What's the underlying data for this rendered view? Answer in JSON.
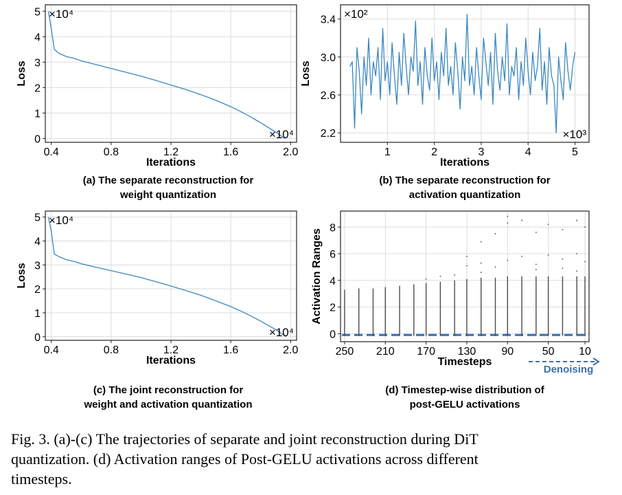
{
  "chart_data": [
    {
      "id": "a",
      "type": "line",
      "title": "",
      "xlabel": "Iterations",
      "ylabel": "Loss",
      "x_multiplier": "×10⁴",
      "y_multiplier": "×10⁴",
      "xlim": [
        0.36,
        2.04
      ],
      "ylim": [
        -0.15,
        5.25
      ],
      "xticks": [
        "0.4",
        "0.8",
        "1.2",
        "1.6",
        "2.0"
      ],
      "yticks": [
        "0",
        "1",
        "2",
        "3",
        "4",
        "5"
      ],
      "grid": true,
      "color": "#3a87c0",
      "x": [
        0.38,
        0.4,
        0.42,
        0.45,
        0.5,
        0.55,
        0.6,
        0.7,
        0.8,
        0.9,
        1.0,
        1.1,
        1.2,
        1.3,
        1.4,
        1.5,
        1.6,
        1.7,
        1.8,
        1.9,
        1.96
      ],
      "y": [
        5.0,
        4.3,
        3.5,
        3.35,
        3.22,
        3.15,
        3.05,
        2.9,
        2.75,
        2.6,
        2.45,
        2.28,
        2.1,
        1.92,
        1.72,
        1.5,
        1.25,
        0.96,
        0.62,
        0.25,
        0.0
      ]
    },
    {
      "id": "b",
      "type": "line",
      "title": "",
      "xlabel": "Iterations",
      "ylabel": "Loss",
      "x_multiplier": "×10³",
      "y_multiplier": "×10²",
      "xlim": [
        0.0,
        5.3
      ],
      "ylim": [
        2.1,
        3.55
      ],
      "xticks": [
        "1",
        "2",
        "3",
        "4",
        "5"
      ],
      "yticks": [
        "2.2",
        "2.6",
        "3.0",
        "3.4"
      ],
      "grid": true,
      "color": "#3a87c0",
      "x": [
        0.2,
        0.25,
        0.3,
        0.35,
        0.4,
        0.45,
        0.5,
        0.55,
        0.6,
        0.65,
        0.7,
        0.75,
        0.8,
        0.85,
        0.9,
        0.95,
        1.0,
        1.05,
        1.1,
        1.15,
        1.2,
        1.25,
        1.3,
        1.35,
        1.4,
        1.45,
        1.5,
        1.55,
        1.6,
        1.65,
        1.7,
        1.75,
        1.8,
        1.85,
        1.9,
        1.95,
        2.0,
        2.05,
        2.1,
        2.15,
        2.2,
        2.25,
        2.3,
        2.35,
        2.4,
        2.45,
        2.5,
        2.55,
        2.6,
        2.65,
        2.7,
        2.75,
        2.8,
        2.85,
        2.9,
        2.95,
        3.0,
        3.05,
        3.1,
        3.15,
        3.2,
        3.25,
        3.3,
        3.35,
        3.4,
        3.45,
        3.5,
        3.55,
        3.6,
        3.65,
        3.7,
        3.75,
        3.8,
        3.85,
        3.9,
        3.95,
        4.0,
        4.05,
        4.1,
        4.15,
        4.2,
        4.25,
        4.3,
        4.35,
        4.4,
        4.45,
        4.5,
        4.55,
        4.6,
        4.65,
        4.7,
        4.75,
        4.8,
        4.85,
        4.9,
        4.95,
        5.0
      ],
      "y": [
        2.9,
        2.95,
        2.25,
        3.1,
        2.85,
        2.4,
        3.0,
        2.7,
        3.2,
        2.6,
        2.95,
        2.8,
        3.1,
        2.55,
        3.3,
        2.75,
        2.95,
        2.6,
        3.15,
        2.8,
        2.5,
        3.05,
        2.7,
        3.25,
        2.9,
        2.6,
        3.0,
        2.85,
        3.38,
        2.7,
        2.95,
        2.5,
        3.1,
        2.8,
        2.65,
        3.2,
        2.75,
        2.95,
        2.55,
        3.05,
        2.8,
        3.3,
        2.7,
        2.9,
        2.6,
        3.15,
        2.85,
        2.45,
        3.0,
        2.75,
        3.45,
        2.7,
        2.9,
        2.6,
        3.1,
        2.8,
        2.55,
        3.2,
        2.95,
        2.7,
        3.05,
        2.5,
        3.25,
        2.85,
        2.65,
        3.0,
        2.75,
        3.35,
        2.6,
        2.9,
        2.8,
        3.1,
        2.55,
        2.95,
        2.7,
        3.2,
        2.85,
        2.6,
        3.05,
        2.75,
        2.9,
        3.3,
        2.65,
        2.95,
        2.5,
        3.1,
        2.8,
        2.7,
        2.2,
        3.0,
        2.75,
        2.55,
        3.15,
        2.85,
        2.65,
        2.9,
        3.05
      ]
    },
    {
      "id": "c",
      "type": "line",
      "title": "",
      "xlabel": "Iterations",
      "ylabel": "Loss",
      "x_multiplier": "×10⁴",
      "y_multiplier": "×10⁴",
      "xlim": [
        0.36,
        2.04
      ],
      "ylim": [
        -0.15,
        5.25
      ],
      "xticks": [
        "0.4",
        "0.8",
        "1.2",
        "1.6",
        "2.0"
      ],
      "yticks": [
        "0",
        "1",
        "2",
        "3",
        "4",
        "5"
      ],
      "grid": true,
      "color": "#3a87c0",
      "x": [
        0.38,
        0.4,
        0.42,
        0.45,
        0.5,
        0.55,
        0.6,
        0.7,
        0.8,
        0.9,
        1.0,
        1.1,
        1.2,
        1.3,
        1.4,
        1.5,
        1.6,
        1.7,
        1.8,
        1.9,
        1.97
      ],
      "y": [
        5.0,
        4.4,
        3.45,
        3.35,
        3.22,
        3.15,
        3.05,
        2.9,
        2.76,
        2.62,
        2.47,
        2.3,
        2.12,
        1.93,
        1.73,
        1.5,
        1.26,
        0.98,
        0.65,
        0.3,
        0.0
      ]
    },
    {
      "id": "d",
      "type": "scatter",
      "title": "",
      "xlabel": "Timesteps",
      "ylabel": "Activation Ranges",
      "xlim": [
        0,
        61
      ],
      "ylim": [
        -0.6,
        9.2
      ],
      "xtick_positions": [
        1,
        11,
        21,
        31,
        41,
        51,
        60
      ],
      "xticks": [
        "250",
        "210",
        "170",
        "130",
        "90",
        "50",
        "10"
      ],
      "yticks": [
        "0",
        "2",
        "4",
        "6",
        "8"
      ],
      "ytick_values": [
        0,
        2,
        4,
        6,
        8
      ],
      "grid": true,
      "color": "#4a4a4a",
      "baseline_color": "#3a6fb5",
      "arrow_label": "Denoising",
      "arrow_color": "#3a6fb5",
      "columns": [
        {
          "x": 1,
          "min": -0.17,
          "max": 3.3
        },
        {
          "x": 4.5,
          "min": -0.17,
          "max": 3.4
        },
        {
          "x": 8,
          "min": -0.17,
          "max": 3.4
        },
        {
          "x": 11,
          "min": -0.17,
          "max": 3.5
        },
        {
          "x": 14.5,
          "min": -0.17,
          "max": 3.6
        },
        {
          "x": 18,
          "min": -0.17,
          "max": 3.7
        },
        {
          "x": 21,
          "min": -0.17,
          "max": 3.8
        },
        {
          "x": 24.5,
          "min": -0.17,
          "max": 3.9
        },
        {
          "x": 28,
          "min": -0.17,
          "max": 4.0
        },
        {
          "x": 31,
          "min": -0.17,
          "max": 4.1
        },
        {
          "x": 34.5,
          "min": -0.17,
          "max": 4.2
        },
        {
          "x": 38,
          "min": -0.17,
          "max": 4.2
        },
        {
          "x": 41,
          "min": -0.17,
          "max": 4.3
        },
        {
          "x": 44.5,
          "min": -0.17,
          "max": 4.3
        },
        {
          "x": 48,
          "min": -0.17,
          "max": 4.3
        },
        {
          "x": 51,
          "min": -0.17,
          "max": 4.3
        },
        {
          "x": 54.5,
          "min": -0.17,
          "max": 4.3
        },
        {
          "x": 58,
          "min": -0.17,
          "max": 4.3
        },
        {
          "x": 60,
          "min": -0.17,
          "max": 4.3
        }
      ],
      "outliers": [
        {
          "x": 28,
          "y": 4.4
        },
        {
          "x": 31,
          "y": 5.1
        },
        {
          "x": 31,
          "y": 5.8
        },
        {
          "x": 34.5,
          "y": 5.3
        },
        {
          "x": 34.5,
          "y": 6.9
        },
        {
          "x": 38,
          "y": 5.0
        },
        {
          "x": 38,
          "y": 7.5
        },
        {
          "x": 41,
          "y": 5.5
        },
        {
          "x": 41,
          "y": 8.3
        },
        {
          "x": 41,
          "y": 8.8
        },
        {
          "x": 44.5,
          "y": 5.8
        },
        {
          "x": 44.5,
          "y": 8.5
        },
        {
          "x": 48,
          "y": 5.2
        },
        {
          "x": 48,
          "y": 7.6
        },
        {
          "x": 51,
          "y": 5.9
        },
        {
          "x": 51,
          "y": 8.2
        },
        {
          "x": 54.5,
          "y": 5.6
        },
        {
          "x": 54.5,
          "y": 7.8
        },
        {
          "x": 58,
          "y": 6.0
        },
        {
          "x": 58,
          "y": 8.5
        },
        {
          "x": 60,
          "y": 5.4
        },
        {
          "x": 60,
          "y": 8.0
        },
        {
          "x": 24.5,
          "y": 4.3
        },
        {
          "x": 21,
          "y": 4.1
        },
        {
          "x": 34.5,
          "y": 4.6
        },
        {
          "x": 48,
          "y": 4.8
        },
        {
          "x": 54.5,
          "y": 4.9
        },
        {
          "x": 58,
          "y": 4.7
        }
      ]
    }
  ],
  "subcaptions": [
    {
      "line1": "(a) The separate reconstruction for",
      "line2": "weight quantization"
    },
    {
      "line1": "(b) The separate reconstruction for",
      "line2": "activation quantization"
    },
    {
      "line1": "(c) The joint reconstruction for",
      "line2": "weight and activation quantization"
    },
    {
      "line1": "(d) Timestep-wise distribution of",
      "line2": "post-GELU activations"
    }
  ],
  "caption": {
    "line1": "Fig. 3.  (a)-(c) The trajectories of separate and joint reconstruction during DiT",
    "line2": "quantization. (d) Activation ranges of Post-GELU activations across different",
    "line3": "timesteps."
  }
}
